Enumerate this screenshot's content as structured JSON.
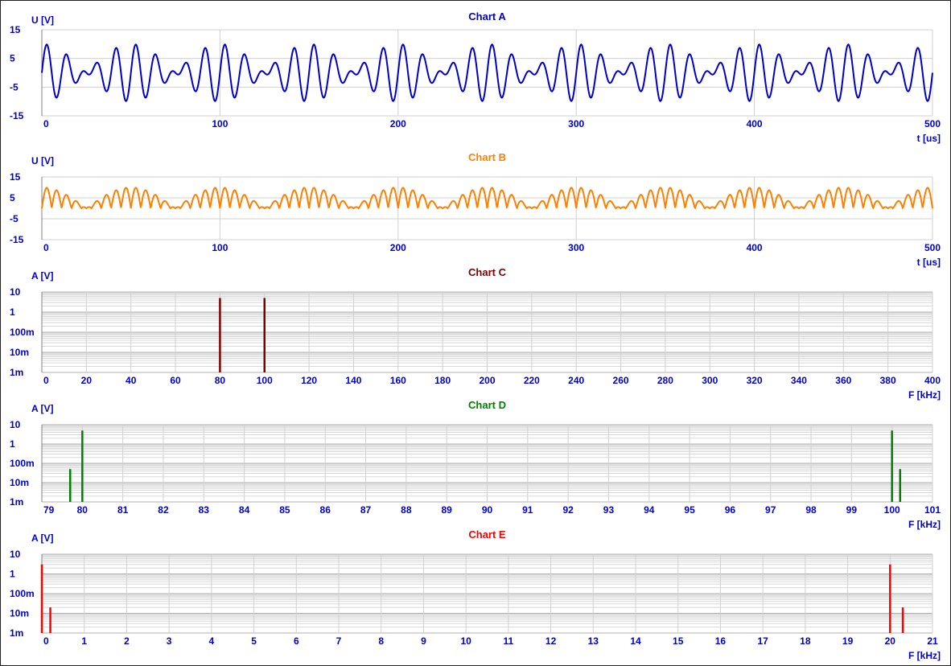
{
  "chart_data": [
    {
      "id": "A",
      "type": "line",
      "title": "Chart A",
      "xlabel": "t [us]",
      "ylabel": "U [V]",
      "color": "#0000cc",
      "xlim": [
        0,
        500
      ],
      "ylim": [
        -15,
        15
      ],
      "xticks": [
        "0",
        "100",
        "200",
        "300",
        "400",
        "500"
      ],
      "yticks": [
        "15",
        "5",
        "-5",
        "-15"
      ],
      "signal": {
        "kind": "sum",
        "components": [
          {
            "freq_khz": 100,
            "amp": 5,
            "phase": "sin"
          },
          {
            "freq_khz": 80,
            "amp": 5,
            "phase": "sin"
          }
        ]
      }
    },
    {
      "id": "B",
      "type": "line",
      "title": "Chart B",
      "xlabel": "t [us]",
      "ylabel": "U [V]",
      "color": "#ff8000",
      "xlim": [
        0,
        500
      ],
      "ylim": [
        -15,
        15
      ],
      "xticks": [
        "0",
        "100",
        "200",
        "300",
        "400",
        "500"
      ],
      "yticks": [
        "15",
        "5",
        "-5",
        "-15"
      ],
      "signal": {
        "kind": "rectified_sum",
        "components": [
          {
            "freq_khz": 100,
            "amp": 5,
            "phase": "sin"
          },
          {
            "freq_khz": 80,
            "amp": 5,
            "phase": "sin"
          }
        ]
      }
    },
    {
      "id": "C",
      "type": "bar",
      "title": "Chart C",
      "xlabel": "F [kHz]",
      "ylabel": "A [V]",
      "color": "#7f0000",
      "yscale": "log",
      "xlim": [
        0,
        400
      ],
      "ylim": [
        0.001,
        10
      ],
      "xticks": [
        "0",
        "20",
        "40",
        "60",
        "80",
        "100",
        "120",
        "140",
        "160",
        "180",
        "200",
        "220",
        "240",
        "260",
        "280",
        "300",
        "320",
        "340",
        "360",
        "380",
        "400"
      ],
      "yticks": [
        "10",
        "1",
        "100m",
        "10m",
        "1m"
      ],
      "peaks": [
        {
          "x": 80,
          "y": 5
        },
        {
          "x": 100,
          "y": 5
        }
      ]
    },
    {
      "id": "D",
      "type": "bar",
      "title": "Chart D",
      "xlabel": "F [kHz]",
      "ylabel": "A [V]",
      "color": "#008000",
      "yscale": "log",
      "xlim": [
        79,
        101
      ],
      "ylim": [
        0.001,
        10
      ],
      "xticks": [
        "79",
        "80",
        "81",
        "82",
        "83",
        "84",
        "85",
        "86",
        "87",
        "88",
        "89",
        "90",
        "91",
        "92",
        "93",
        "94",
        "95",
        "96",
        "97",
        "98",
        "99",
        "100",
        "101"
      ],
      "yticks": [
        "10",
        "1",
        "100m",
        "10m",
        "1m"
      ],
      "peaks": [
        {
          "x": 79.7,
          "y": 0.05
        },
        {
          "x": 80,
          "y": 5
        },
        {
          "x": 100,
          "y": 5
        },
        {
          "x": 100.2,
          "y": 0.05
        }
      ]
    },
    {
      "id": "E",
      "type": "bar",
      "title": "Chart E",
      "xlabel": "F [kHz]",
      "ylabel": "A [V]",
      "color": "#ff0000",
      "yscale": "log",
      "xlim": [
        0,
        21
      ],
      "ylim": [
        0.001,
        10
      ],
      "xticks": [
        "0",
        "1",
        "2",
        "3",
        "4",
        "5",
        "6",
        "7",
        "8",
        "9",
        "10",
        "11",
        "12",
        "13",
        "14",
        "15",
        "16",
        "17",
        "18",
        "19",
        "20",
        "21"
      ],
      "yticks": [
        "10",
        "1",
        "100m",
        "10m",
        "1m"
      ],
      "peaks": [
        {
          "x": 0,
          "y": 3
        },
        {
          "x": 0.2,
          "y": 0.02
        },
        {
          "x": 20,
          "y": 3
        },
        {
          "x": 20.3,
          "y": 0.02
        }
      ]
    }
  ]
}
